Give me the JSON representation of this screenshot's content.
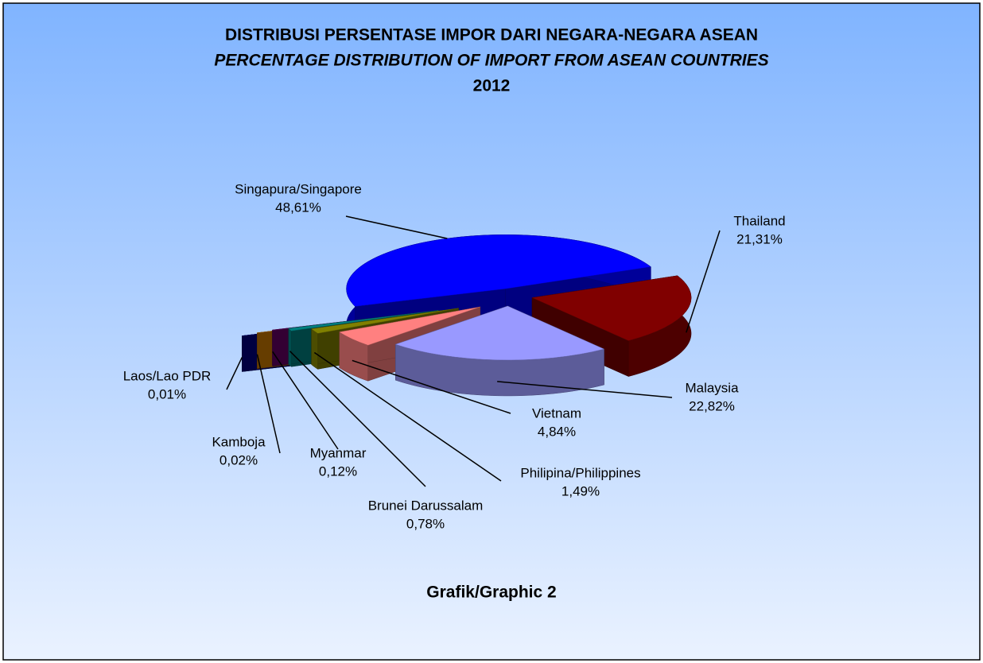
{
  "chart_data": {
    "type": "pie3d",
    "title": "DISTRIBUSI PERSENTASE IMPOR DARI NEGARA-NEGARA ASEAN",
    "subtitle": "PERCENTAGE DISTRIBUTION OF IMPORT FROM ASEAN COUNTRIES",
    "year": "2012",
    "caption": "Grafik/Graphic 2",
    "categories": [
      "Singapura/Singapore",
      "Thailand",
      "Malaysia",
      "Vietnam",
      "Philipina/Philippines",
      "Brunei Darussalam",
      "Myanmar",
      "Kamboja",
      "Laos/Lao PDR"
    ],
    "values": [
      48.61,
      21.31,
      22.82,
      4.84,
      1.49,
      0.78,
      0.12,
      0.02,
      0.01
    ],
    "value_labels": [
      "48,61%",
      "21,31%",
      "22,82%",
      "4,84%",
      "1,49%",
      "0,78%",
      "0,12%",
      "0,02%",
      "0,01%"
    ],
    "colors": [
      "#0000ff",
      "#800000",
      "#9999ff",
      "#ff8080",
      "#808000",
      "#008080",
      "#660066",
      "#cc7a00",
      "#000080"
    ]
  }
}
